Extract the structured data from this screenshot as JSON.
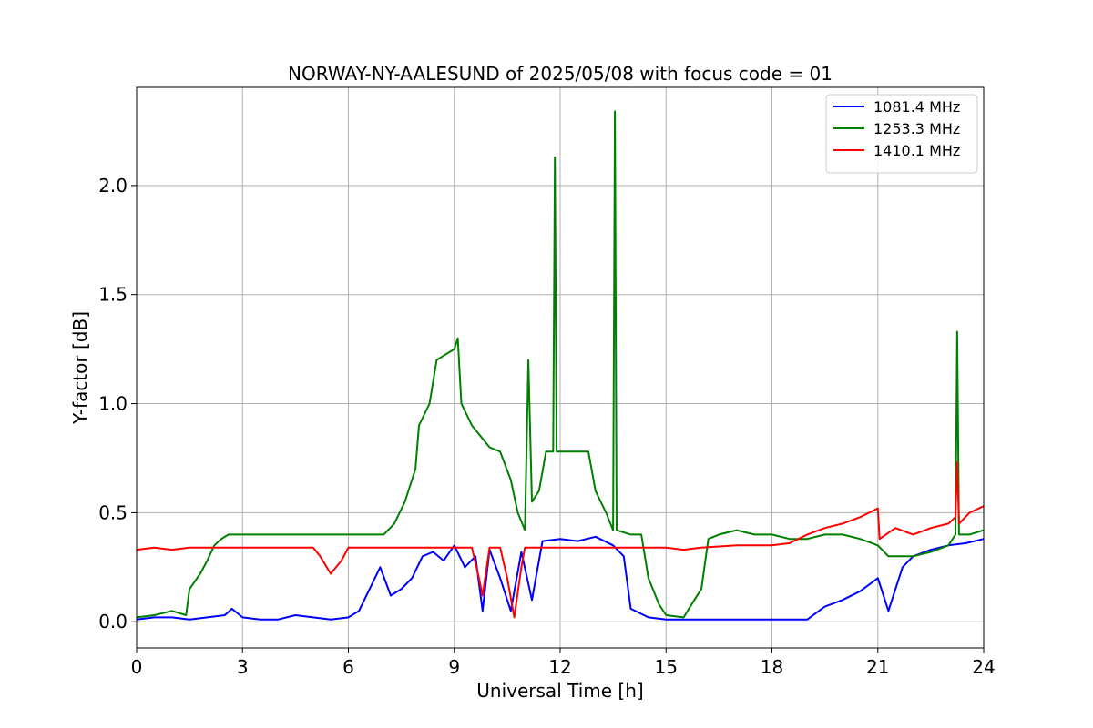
{
  "chart_data": {
    "type": "line",
    "title": "NORWAY-NY-AALESUND of 2025/05/08 with focus code = 01",
    "xlabel": "Universal Time [h]",
    "ylabel": "Y-factor [dB]",
    "xlim": [
      0,
      24
    ],
    "ylim": [
      -0.12,
      2.45
    ],
    "xticks": [
      0,
      3,
      6,
      9,
      12,
      15,
      18,
      21,
      24
    ],
    "xtick_labels": [
      "0",
      "3",
      "6",
      "9",
      "12",
      "15",
      "18",
      "21",
      "24"
    ],
    "yticks": [
      0.0,
      0.5,
      1.0,
      1.5,
      2.0
    ],
    "ytick_labels": [
      "0.0",
      "0.5",
      "1.0",
      "1.5",
      "2.0"
    ],
    "grid": true,
    "legend_position": "top-right",
    "series": [
      {
        "name": "1081.4 MHz",
        "color": "#0000ff",
        "x": [
          0,
          0.5,
          1.0,
          1.5,
          2.0,
          2.5,
          2.7,
          3.0,
          3.5,
          4.0,
          4.5,
          5.0,
          5.5,
          6.0,
          6.3,
          6.6,
          6.9,
          7.2,
          7.5,
          7.8,
          8.1,
          8.4,
          8.7,
          9.0,
          9.3,
          9.6,
          9.8,
          10.0,
          10.3,
          10.6,
          10.9,
          11.2,
          11.5,
          12.0,
          12.5,
          13.0,
          13.5,
          13.8,
          14.0,
          14.5,
          15.0,
          15.5,
          16.0,
          16.5,
          17.0,
          17.5,
          18.0,
          18.5,
          19.0,
          19.5,
          20.0,
          20.5,
          21.0,
          21.3,
          21.7,
          22.0,
          22.5,
          23.0,
          23.5,
          24.0
        ],
        "y": [
          0.01,
          0.02,
          0.02,
          0.01,
          0.02,
          0.03,
          0.06,
          0.02,
          0.01,
          0.01,
          0.03,
          0.02,
          0.01,
          0.02,
          0.05,
          0.15,
          0.25,
          0.12,
          0.15,
          0.2,
          0.3,
          0.32,
          0.28,
          0.35,
          0.25,
          0.3,
          0.05,
          0.33,
          0.2,
          0.05,
          0.32,
          0.1,
          0.37,
          0.38,
          0.37,
          0.39,
          0.35,
          0.3,
          0.06,
          0.02,
          0.01,
          0.01,
          0.01,
          0.01,
          0.01,
          0.01,
          0.01,
          0.01,
          0.01,
          0.07,
          0.1,
          0.14,
          0.2,
          0.05,
          0.25,
          0.3,
          0.33,
          0.35,
          0.36,
          0.38
        ]
      },
      {
        "name": "1253.3 MHz",
        "color": "#008000",
        "x": [
          0,
          0.5,
          1.0,
          1.4,
          1.5,
          1.8,
          2.0,
          2.2,
          2.4,
          2.6,
          3.0,
          4.0,
          5.0,
          6.0,
          7.0,
          7.3,
          7.6,
          7.9,
          8.0,
          8.3,
          8.5,
          8.7,
          9.0,
          9.1,
          9.2,
          9.5,
          10.0,
          10.3,
          10.6,
          10.8,
          11.0,
          11.1,
          11.2,
          11.4,
          11.6,
          11.8,
          11.85,
          11.9,
          11.95,
          12.0,
          12.5,
          12.8,
          13.0,
          13.3,
          13.5,
          13.55,
          13.6,
          14.0,
          14.3,
          14.5,
          14.8,
          15.0,
          15.5,
          15.8,
          16.0,
          16.2,
          16.5,
          17.0,
          17.5,
          18.0,
          18.5,
          19.0,
          19.5,
          20.0,
          20.5,
          21.0,
          21.3,
          21.5,
          22.0,
          22.5,
          23.0,
          23.2,
          23.25,
          23.3,
          23.6,
          24.0
        ],
        "y": [
          0.02,
          0.03,
          0.05,
          0.03,
          0.15,
          0.22,
          0.28,
          0.35,
          0.38,
          0.4,
          0.4,
          0.4,
          0.4,
          0.4,
          0.4,
          0.45,
          0.55,
          0.7,
          0.9,
          1.0,
          1.2,
          1.22,
          1.25,
          1.3,
          1.0,
          0.9,
          0.8,
          0.78,
          0.65,
          0.5,
          0.42,
          1.2,
          0.55,
          0.6,
          0.78,
          0.78,
          2.13,
          0.78,
          0.78,
          0.78,
          0.78,
          0.78,
          0.6,
          0.5,
          0.42,
          2.34,
          0.42,
          0.4,
          0.4,
          0.2,
          0.08,
          0.03,
          0.02,
          0.1,
          0.15,
          0.38,
          0.4,
          0.42,
          0.4,
          0.4,
          0.38,
          0.38,
          0.4,
          0.4,
          0.38,
          0.35,
          0.3,
          0.3,
          0.3,
          0.32,
          0.35,
          0.4,
          1.33,
          0.4,
          0.4,
          0.42
        ]
      },
      {
        "name": "1410.1 MHz",
        "color": "#ff0000",
        "x": [
          0,
          0.5,
          1.0,
          1.5,
          3.0,
          5.0,
          5.2,
          5.5,
          5.8,
          6.0,
          7.0,
          8.0,
          9.0,
          9.5,
          9.7,
          9.8,
          10.0,
          10.3,
          10.5,
          10.7,
          10.9,
          11.0,
          11.5,
          12.0,
          13.0,
          14.0,
          15.0,
          15.5,
          16.0,
          17.0,
          18.0,
          18.5,
          19.0,
          19.5,
          20.0,
          20.5,
          21.0,
          21.05,
          21.5,
          22.0,
          22.5,
          23.0,
          23.2,
          23.25,
          23.3,
          23.6,
          24.0
        ],
        "y": [
          0.33,
          0.34,
          0.33,
          0.34,
          0.34,
          0.34,
          0.3,
          0.22,
          0.28,
          0.34,
          0.34,
          0.34,
          0.34,
          0.34,
          0.2,
          0.12,
          0.34,
          0.34,
          0.2,
          0.02,
          0.25,
          0.34,
          0.34,
          0.34,
          0.34,
          0.34,
          0.34,
          0.33,
          0.34,
          0.35,
          0.35,
          0.36,
          0.4,
          0.43,
          0.45,
          0.48,
          0.52,
          0.38,
          0.43,
          0.4,
          0.43,
          0.45,
          0.48,
          0.73,
          0.45,
          0.5,
          0.53
        ]
      }
    ]
  }
}
